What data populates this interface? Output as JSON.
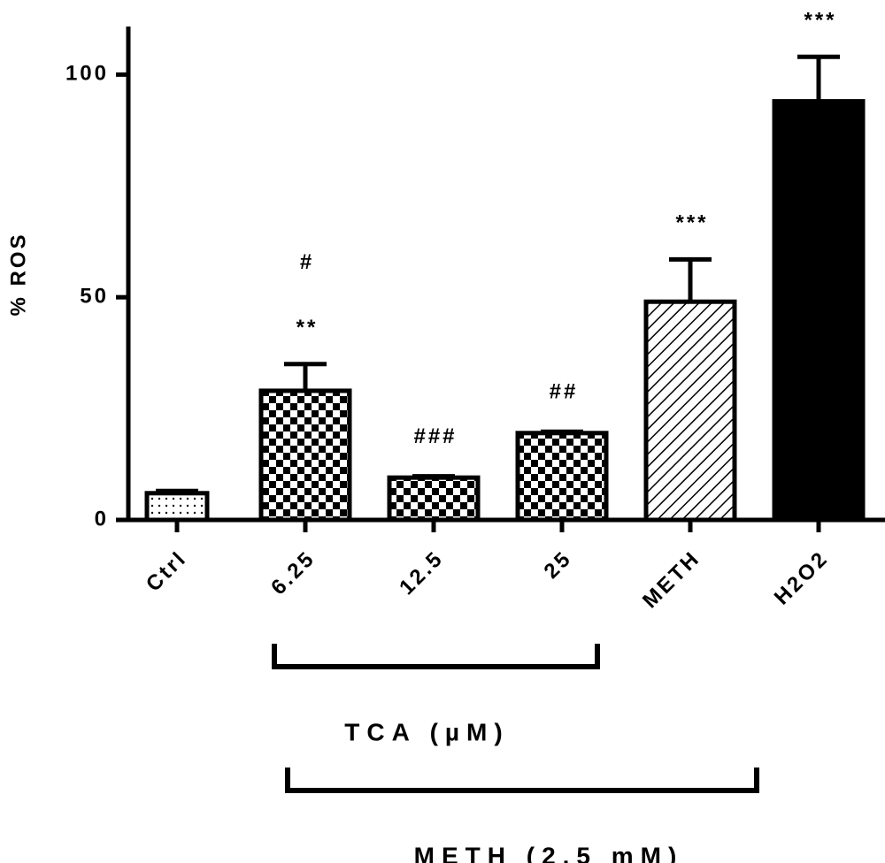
{
  "chart_data": {
    "type": "bar",
    "y_label": "% ROS",
    "categories": [
      "Ctrl",
      "6.25",
      "12.5",
      "25",
      "METH",
      "H2O2"
    ],
    "values": [
      6,
      29,
      9.5,
      19.5,
      49,
      94
    ],
    "errors": [
      0.5,
      6,
      0.3,
      0.3,
      9.5,
      10
    ],
    "patterns": [
      "dots",
      "checker",
      "checker",
      "checker",
      "hatch",
      "solid"
    ],
    "color": "#000000",
    "stars": [
      null,
      "**",
      null,
      null,
      "***",
      "***"
    ],
    "hashes": [
      null,
      "#",
      "###",
      "##",
      null,
      null
    ],
    "ylim": [
      0,
      110
    ],
    "yticks": [
      0,
      50,
      100
    ],
    "groups": [
      {
        "label": "TCA (µM)",
        "span": [
          "6.25",
          "25"
        ]
      },
      {
        "label": "METH (2.5 mM)",
        "span": [
          "6.25",
          "METH"
        ]
      }
    ]
  }
}
